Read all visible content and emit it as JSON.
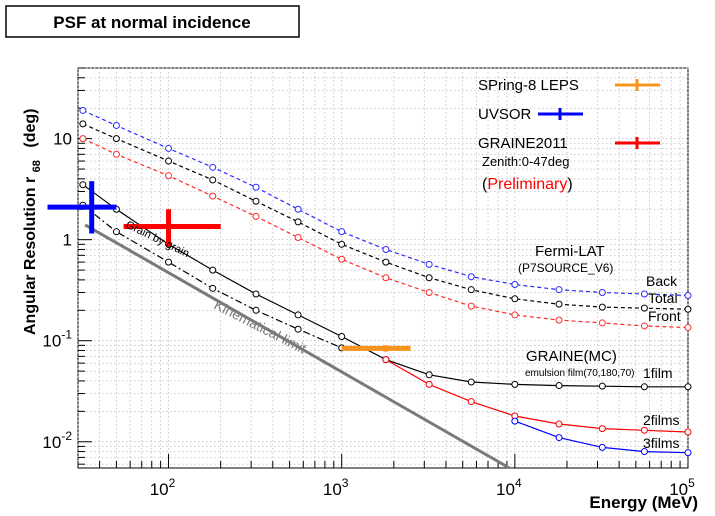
{
  "chart_data": {
    "type": "line",
    "title": "PSF at normal incidence",
    "xlabel": "Energy (MeV)",
    "ylabel": "Angular Resolution r",
    "ylabel_sub": "68",
    "ylabel_unit": "(deg)",
    "x_scale": "log",
    "y_scale": "log",
    "xlim": [
      30,
      100000
    ],
    "ylim": [
      0.0055,
      50
    ],
    "grid": true,
    "x_ticks": [
      {
        "value": 100,
        "base": "10",
        "exp": "2"
      },
      {
        "value": 1000,
        "base": "10",
        "exp": "3"
      },
      {
        "value": 10000,
        "base": "10",
        "exp": "4"
      },
      {
        "value": 100000,
        "base": "10",
        "exp": "5"
      }
    ],
    "y_ticks": [
      {
        "value": 0.01,
        "base": "10",
        "exp": "-2",
        "label": ""
      },
      {
        "value": 0.1,
        "base": "10",
        "exp": "-1",
        "label": ""
      },
      {
        "value": 1,
        "base": "",
        "exp": "",
        "label": "1"
      },
      {
        "value": 10,
        "base": "",
        "exp": "",
        "label": "10"
      }
    ],
    "series": [
      {
        "name": "Back",
        "group": "Fermi-LAT",
        "color": "#2b2bff",
        "dash": "dashed",
        "x": [
          32,
          50,
          100,
          180,
          320,
          560,
          1000,
          1800,
          3200,
          5600,
          10000,
          18000,
          32000,
          56000,
          100000
        ],
        "y": [
          19,
          13.5,
          8,
          5.2,
          3.3,
          2.0,
          1.2,
          0.8,
          0.57,
          0.43,
          0.36,
          0.32,
          0.3,
          0.29,
          0.28
        ]
      },
      {
        "name": "Total",
        "group": "Fermi-LAT",
        "color": "#000000",
        "dash": "dashed",
        "x": [
          32,
          50,
          100,
          180,
          320,
          560,
          1000,
          1800,
          3200,
          5600,
          10000,
          18000,
          32000,
          56000,
          100000
        ],
        "y": [
          14,
          10,
          6,
          3.9,
          2.4,
          1.5,
          0.9,
          0.6,
          0.42,
          0.32,
          0.26,
          0.23,
          0.215,
          0.21,
          0.205
        ]
      },
      {
        "name": "Front",
        "group": "Fermi-LAT",
        "color": "#ff2b2b",
        "dash": "dashed",
        "x": [
          32,
          50,
          100,
          180,
          320,
          560,
          1000,
          1800,
          3200,
          5600,
          10000,
          18000,
          32000,
          56000,
          100000
        ],
        "y": [
          10,
          7,
          4.3,
          2.7,
          1.7,
          1.05,
          0.64,
          0.42,
          0.3,
          0.22,
          0.18,
          0.16,
          0.15,
          0.14,
          0.135
        ]
      },
      {
        "name": "1film",
        "group": "GRAINE(MC)",
        "color": "#000000",
        "dash": "solid",
        "x": [
          32,
          50,
          100,
          180,
          320,
          560,
          1000,
          1800,
          3200,
          5600,
          10000,
          18000,
          32000,
          56000,
          100000
        ],
        "y": [
          3.5,
          2.0,
          0.9,
          0.5,
          0.29,
          0.18,
          0.11,
          0.065,
          0.046,
          0.039,
          0.037,
          0.036,
          0.0355,
          0.035,
          0.035
        ]
      },
      {
        "name": "2films",
        "group": "GRAINE(MC)",
        "color": "#ff0000",
        "dash": "solid",
        "x": [
          1800,
          3200,
          5600,
          10000,
          18000,
          32000,
          56000,
          100000
        ],
        "y": [
          0.065,
          0.037,
          0.025,
          0.018,
          0.015,
          0.0135,
          0.013,
          0.0125
        ]
      },
      {
        "name": "3films",
        "group": "GRAINE(MC)",
        "color": "#0000ff",
        "dash": "solid",
        "x": [
          10000,
          18000,
          32000,
          56000,
          100000
        ],
        "y": [
          0.016,
          0.011,
          0.0088,
          0.008,
          0.0078
        ]
      },
      {
        "name": "Grain by grain",
        "group": "",
        "color": "#000000",
        "dash": "dashdot",
        "x": [
          32,
          50,
          100,
          180,
          320,
          560,
          1000
        ],
        "y": [
          2.2,
          1.2,
          0.6,
          0.33,
          0.2,
          0.13,
          0.085
        ]
      }
    ],
    "reference_line": {
      "name": "Kinematical limit",
      "color": "#7a7a7a",
      "x": [
        33,
        9300
      ],
      "y": [
        1.4,
        0.0055
      ]
    },
    "measurements": [
      {
        "name": "SPring-8 LEPS",
        "color": "#f7941d",
        "x": 1800,
        "y": 0.084,
        "xerr": [
          1000,
          2500
        ],
        "yerr": [
          0.078,
          0.09
        ]
      },
      {
        "name": "UVSOR",
        "color": "#0000ff",
        "x": 36,
        "y": 2.1,
        "xerr": [
          20,
          50
        ],
        "yerr": [
          1.15,
          3.8
        ]
      },
      {
        "name": "GRAINE2011",
        "color": "#ff0000",
        "x": 100,
        "y": 1.35,
        "xerr": [
          55,
          200
        ],
        "yerr": [
          0.85,
          2.0
        ]
      }
    ],
    "legend": {
      "placement": "top-right",
      "entries": [
        "SPring-8 LEPS",
        "UVSOR",
        "GRAINE2011"
      ],
      "graine_note": "Zenith:0-47deg",
      "preliminary": "(Preliminary)",
      "preliminary_open": "(",
      "preliminary_word": "Preliminary",
      "preliminary_close": ")"
    },
    "annotations": {
      "fermi_title": "Fermi-LAT",
      "fermi_sub": "(P7SOURCE_V6)",
      "graine_title": "GRAINE(MC)",
      "graine_sub": "emulsion film(70,180,70)",
      "grain_label": "Grain by grain",
      "kin_label": "Kinematical limit",
      "back": "Back",
      "total": "Total",
      "front": "Front",
      "film1": "1film",
      "film2": "2films",
      "film3": "3films"
    }
  }
}
